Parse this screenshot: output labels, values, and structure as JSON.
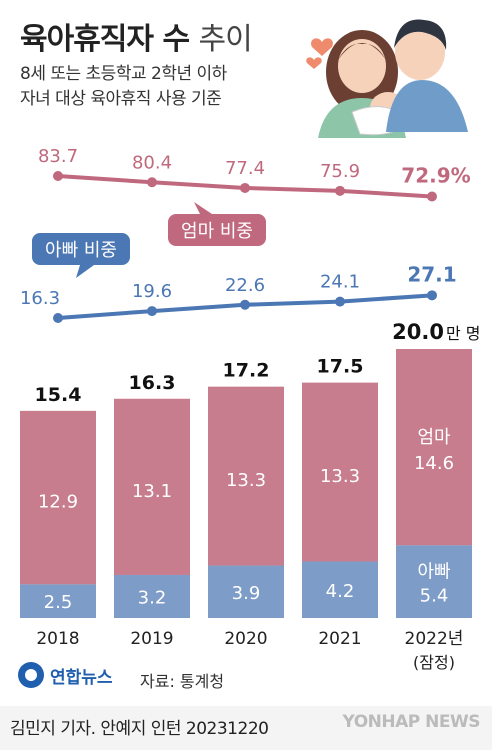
{
  "header": {
    "title_bold": "육아휴직자 수",
    "title_light": "추이",
    "subtitle_line1": "8세 또는 초등학교 2학년 이하",
    "subtitle_line2": "자녀 대상 육아휴직 사용 기준"
  },
  "footer": {
    "logo_text": "연합뉴스",
    "source": "자료: 통계청",
    "credit": "김민지 기자. 안예지 인턴  20231220",
    "watermark": "YONHAP NEWS"
  },
  "colors": {
    "mom": "#c77d8e",
    "dad": "#7d9cc7",
    "mom_line": "#c0697e",
    "dad_line": "#4b77b4"
  },
  "chart_data": {
    "type": "bar",
    "stacked": true,
    "categories": [
      "2018",
      "2019",
      "2020",
      "2021",
      "2022년"
    ],
    "category_note": "(잠정)",
    "unit": "만 명",
    "totals": [
      15.4,
      16.3,
      17.2,
      17.5,
      20.0
    ],
    "series": [
      {
        "name": "아빠",
        "label_line1": "아빠",
        "values": [
          2.5,
          3.2,
          3.9,
          4.2,
          5.4
        ],
        "color": "#7d9cc7"
      },
      {
        "name": "엄마",
        "label_line1": "엄마",
        "values": [
          12.9,
          13.1,
          13.3,
          13.3,
          14.6
        ],
        "color": "#c77d8e"
      }
    ],
    "share_lines": [
      {
        "name": "엄마 비중",
        "values": [
          83.7,
          80.4,
          77.4,
          75.9,
          72.9
        ],
        "last_suffix": "%",
        "color": "#c0697e"
      },
      {
        "name": "아빠 비중",
        "values": [
          16.3,
          19.6,
          22.6,
          24.1,
          27.1
        ],
        "color": "#4b77b4"
      }
    ]
  }
}
